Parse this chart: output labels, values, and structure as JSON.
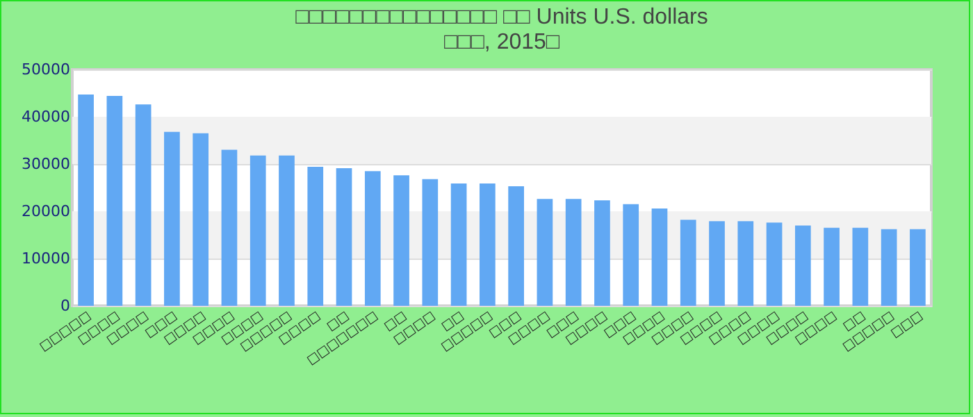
{
  "chart_data": {
    "type": "bar",
    "title": "□□□□□□□□□□□□□□□ □□ Units U.S. dollars",
    "subtitle": "□□□, 2015□",
    "categories": [
      "□□□□□",
      "□□□□",
      "□□□□",
      "□□□",
      "□□□□",
      "□□□□",
      "□□□□",
      "□□□□□",
      "□□□□",
      "□□",
      "□□□□□□□",
      "□□",
      "□□□□",
      "□□",
      "□□□□□",
      "□□□",
      "□□□□",
      "□□□",
      "□□□□",
      "□□□",
      "□□□□",
      "□□□□",
      "□□□□",
      "□□□□",
      "□□□□",
      "□□□□",
      "□□□□",
      "□□",
      "□□□□□",
      "□□□"
    ],
    "values": [
      44700,
      44400,
      42600,
      36800,
      36500,
      33000,
      31800,
      31800,
      29400,
      29100,
      28500,
      27600,
      26800,
      25900,
      25900,
      25300,
      22600,
      22600,
      22300,
      21500,
      20600,
      18200,
      17900,
      17900,
      17600,
      17000,
      16500,
      16500,
      16200,
      16200
    ],
    "color": "#61a8f3",
    "ylim": [
      0,
      50000
    ],
    "yticks": [
      0,
      10000,
      20000,
      30000,
      40000,
      50000
    ],
    "grid": true
  }
}
